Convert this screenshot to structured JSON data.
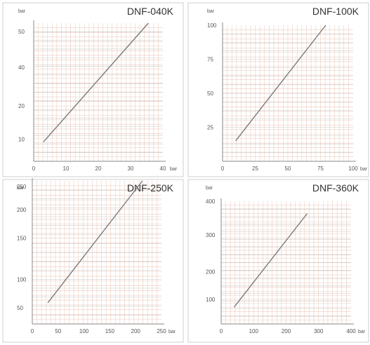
{
  "chart_data": [
    {
      "type": "line",
      "title": "DNF-040K",
      "xlabel": "bar",
      "ylabel": "bar",
      "xlim": [
        0,
        40
      ],
      "ylim": [
        0,
        50
      ],
      "x_ticks": [
        "0",
        "10",
        "20",
        "30",
        "40"
      ],
      "y_ticks": [
        "10",
        "20",
        "40",
        "50"
      ],
      "grid": true,
      "series": [
        {
          "x": [
            3,
            35.5
          ],
          "y": [
            7,
            50
          ]
        }
      ]
    },
    {
      "type": "line",
      "title": "DNF-100K",
      "xlabel": "bar",
      "ylabel": "bar",
      "xlim": [
        0,
        100
      ],
      "ylim": [
        0,
        100
      ],
      "x_ticks": [
        "0",
        "25",
        "50",
        "75",
        "100"
      ],
      "y_ticks": [
        "25",
        "50",
        "75",
        "100"
      ],
      "grid": true,
      "series": [
        {
          "x": [
            10,
            79
          ],
          "y": [
            15,
            100
          ]
        }
      ]
    },
    {
      "type": "line",
      "title": "DNF-250K",
      "xlabel": "bar",
      "ylabel": "bar",
      "xlim": [
        0,
        250
      ],
      "ylim": [
        0,
        250
      ],
      "x_ticks": [
        "0",
        "50",
        "100",
        "150",
        "200",
        "250"
      ],
      "y_ticks": [
        "50",
        "100",
        "150",
        "200",
        "250"
      ],
      "grid": true,
      "series": [
        {
          "x": [
            30,
            213
          ],
          "y": [
            37,
            250
          ]
        }
      ]
    },
    {
      "type": "line",
      "title": "DNF-360K",
      "xlabel": "bar",
      "ylabel": "bar",
      "xlim": [
        0,
        400
      ],
      "ylim": [
        0,
        400
      ],
      "x_ticks": [
        "0",
        "100",
        "200",
        "300",
        "400"
      ],
      "y_ticks": [
        "100",
        "200",
        "300",
        "400"
      ],
      "grid": true,
      "series": [
        {
          "x": [
            40,
            265
          ],
          "y": [
            55,
            360
          ]
        }
      ]
    }
  ],
  "colors": {
    "grid": "#e8c2b2",
    "axis": "#8a8a8a",
    "line": "#7a7a7a",
    "divider": "#cfcfcf"
  }
}
